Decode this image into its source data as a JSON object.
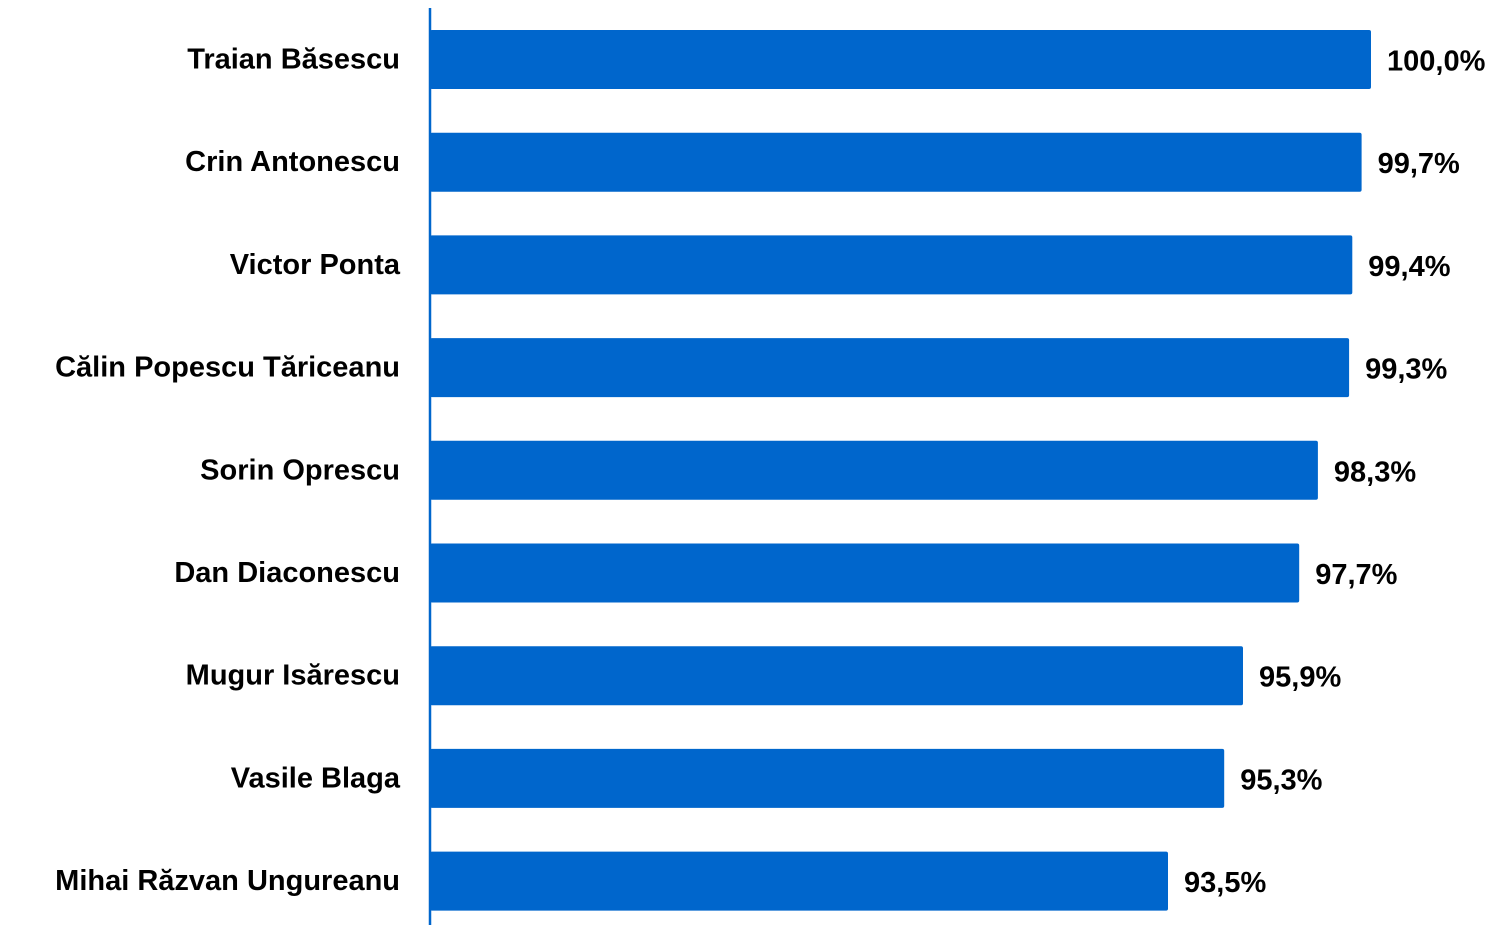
{
  "chart_data": {
    "type": "bar",
    "orientation": "horizontal",
    "categories": [
      "Traian Băsescu",
      "Crin Antonescu",
      "Victor Ponta",
      "Călin Popescu Tăriceanu",
      "Sorin Oprescu",
      "Dan Diaconescu",
      "Mugur Isărescu",
      "Vasile Blaga",
      "Mihai Răzvan Ungureanu"
    ],
    "values": [
      100.0,
      99.7,
      99.4,
      99.3,
      98.3,
      97.7,
      95.9,
      95.3,
      93.5
    ],
    "value_labels": [
      "100,0%",
      "99,7%",
      "99,4%",
      "99,3%",
      "98,3%",
      "97,7%",
      "95,9%",
      "95,3%",
      "93,5%"
    ],
    "title": "",
    "xlabel": "",
    "ylabel": "",
    "xlim": [
      70,
      100
    ],
    "grid": false,
    "legend": "none",
    "colors": {
      "bar": "#0066CC",
      "axis": "#0066CC",
      "text": "#000000"
    }
  }
}
